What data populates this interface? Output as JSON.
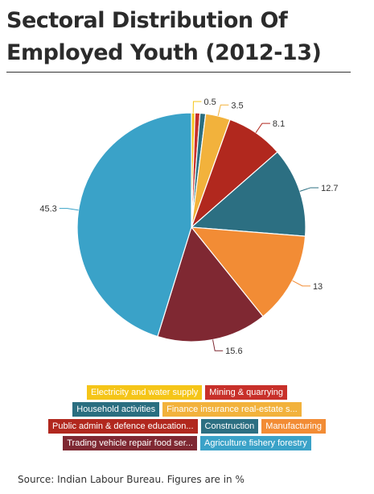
{
  "title": "Sectoral Distribution Of Employed Youth (2012-13)",
  "source": "Source: Indian Labour Bureau. Figures are in %",
  "chart_data": {
    "type": "pie",
    "title": "Sectoral Distribution Of Employed Youth (2012-13)",
    "slices": [
      {
        "name": "Electricity and water supply",
        "value": 0.5,
        "label": "0.5",
        "color": "#f5c518"
      },
      {
        "name": "Mining & quarrying",
        "value": 0.7,
        "label": "",
        "color": "#c8302a"
      },
      {
        "name": "Household activities",
        "value": 0.8,
        "label": "",
        "color": "#2a6e80"
      },
      {
        "name": "Finance insurance real-estate s...",
        "value": 3.5,
        "label": "3.5",
        "color": "#f2b23c"
      },
      {
        "name": "Public admin & defence education...",
        "value": 8.1,
        "label": "8.1",
        "color": "#b1281e"
      },
      {
        "name": "Construction",
        "value": 12.7,
        "label": "12.7",
        "color": "#2c6f82"
      },
      {
        "name": "Manufacturing",
        "value": 13,
        "label": "13",
        "color": "#f28c35"
      },
      {
        "name": "Trading vehicle repair food ser...",
        "value": 15.6,
        "label": "15.6",
        "color": "#7f2832"
      },
      {
        "name": "Agriculture fishery forestry",
        "value": 45.3,
        "label": "45.3",
        "color": "#3aa2c8"
      }
    ],
    "legend_rows": [
      [
        "Electricity and water supply",
        "Mining & quarrying"
      ],
      [
        "Household activities",
        "Finance insurance real-estate s..."
      ],
      [
        "Public admin & defence education...",
        "Construction",
        "Manufacturing"
      ],
      [
        "Trading vehicle repair food ser...",
        "Agriculture fishery forestry"
      ]
    ],
    "legend_placement": "bottom"
  }
}
